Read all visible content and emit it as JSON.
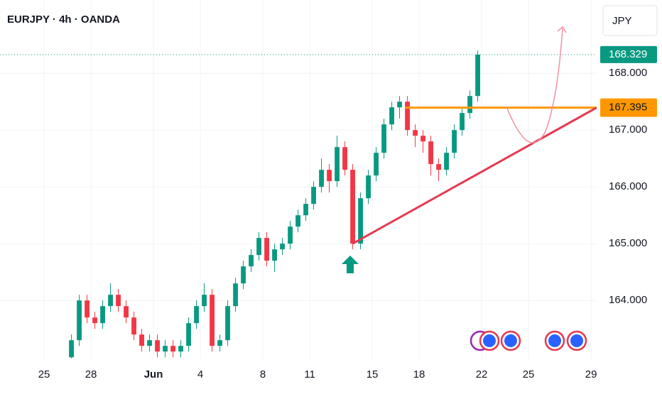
{
  "chart_data": {
    "type": "candlestick",
    "title": "EURJPY · 4h · OANDA",
    "currency": "JPY",
    "up_color": "#089981",
    "down_color": "#f23645",
    "xlim": [
      -2.82,
      35.36
    ],
    "xticks": [
      {
        "value": 0,
        "label": "25"
      },
      {
        "value": 3,
        "label": "28"
      },
      {
        "value": 7,
        "label": "Jun"
      },
      {
        "value": 10,
        "label": "4"
      },
      {
        "value": 14,
        "label": "8"
      },
      {
        "value": 17,
        "label": "11"
      },
      {
        "value": 21,
        "label": "15"
      },
      {
        "value": 24,
        "label": "18"
      },
      {
        "value": 28,
        "label": "22"
      },
      {
        "value": 31,
        "label": "25"
      },
      {
        "value": 35,
        "label": "29"
      }
    ],
    "ylim": [
      163.04,
      169.29
    ],
    "yticks": [
      {
        "value": 164,
        "label": "164.000"
      },
      {
        "value": 165,
        "label": "165.000"
      },
      {
        "value": 166,
        "label": "166.000"
      },
      {
        "value": 167,
        "label": "167.000"
      },
      {
        "value": 168,
        "label": "168.000"
      }
    ],
    "grid": true,
    "candles": [
      [
        1.75,
        163.0,
        163.4,
        162.9,
        163.3
      ],
      [
        2.25,
        163.3,
        164.1,
        163.2,
        164.0
      ],
      [
        2.75,
        164.0,
        164.1,
        163.6,
        163.7
      ],
      [
        3.25,
        163.7,
        163.8,
        163.5,
        163.6
      ],
      [
        3.75,
        163.6,
        164.0,
        163.5,
        163.9
      ],
      [
        4.25,
        163.9,
        164.3,
        163.8,
        164.1
      ],
      [
        4.75,
        164.1,
        164.2,
        163.8,
        163.9
      ],
      [
        5.25,
        163.9,
        164.0,
        163.6,
        163.7
      ],
      [
        5.75,
        163.7,
        163.8,
        163.3,
        163.4
      ],
      [
        6.25,
        163.4,
        163.5,
        163.1,
        163.2
      ],
      [
        6.75,
        163.2,
        163.4,
        163.1,
        163.3
      ],
      [
        7.25,
        163.3,
        163.4,
        163.0,
        163.1
      ],
      [
        7.75,
        163.1,
        163.3,
        163.0,
        163.2
      ],
      [
        8.25,
        163.2,
        163.3,
        163.0,
        163.1
      ],
      [
        8.75,
        163.1,
        163.3,
        163.0,
        163.2
      ],
      [
        9.25,
        163.2,
        163.7,
        163.1,
        163.6
      ],
      [
        9.75,
        163.6,
        164.0,
        163.5,
        163.9
      ],
      [
        10.25,
        163.9,
        164.3,
        163.8,
        164.1
      ],
      [
        10.75,
        164.1,
        164.2,
        163.1,
        163.2
      ],
      [
        11.25,
        163.2,
        163.4,
        163.1,
        163.3
      ],
      [
        11.75,
        163.3,
        164.0,
        163.2,
        163.9
      ],
      [
        12.25,
        163.9,
        164.4,
        163.8,
        164.3
      ],
      [
        12.75,
        164.3,
        164.7,
        164.2,
        164.6
      ],
      [
        13.25,
        164.6,
        164.9,
        164.5,
        164.8
      ],
      [
        13.75,
        164.8,
        165.2,
        164.7,
        165.1
      ],
      [
        14.25,
        165.1,
        165.2,
        164.6,
        164.7
      ],
      [
        14.75,
        164.7,
        165.0,
        164.5,
        164.9
      ],
      [
        15.25,
        164.9,
        165.1,
        164.8,
        165.0
      ],
      [
        15.75,
        165.0,
        165.4,
        164.9,
        165.3
      ],
      [
        16.25,
        165.3,
        165.6,
        165.2,
        165.5
      ],
      [
        16.75,
        165.5,
        165.8,
        165.4,
        165.7
      ],
      [
        17.25,
        165.7,
        166.1,
        165.6,
        166.0
      ],
      [
        17.75,
        166.0,
        166.5,
        165.9,
        166.3
      ],
      [
        18.25,
        166.3,
        166.4,
        165.9,
        166.1
      ],
      [
        18.75,
        166.1,
        166.9,
        166.0,
        166.7
      ],
      [
        19.25,
        166.7,
        166.8,
        166.2,
        166.3
      ],
      [
        19.75,
        166.3,
        166.4,
        164.9,
        165.0
      ],
      [
        20.25,
        165.0,
        165.9,
        164.9,
        165.8
      ],
      [
        20.75,
        165.8,
        166.3,
        165.7,
        166.2
      ],
      [
        21.25,
        166.2,
        166.7,
        166.1,
        166.6
      ],
      [
        21.75,
        166.6,
        167.2,
        166.5,
        167.1
      ],
      [
        22.25,
        167.1,
        167.5,
        167.0,
        167.4
      ],
      [
        22.75,
        167.4,
        167.6,
        167.2,
        167.5
      ],
      [
        23.25,
        167.5,
        167.6,
        166.9,
        167.0
      ],
      [
        23.75,
        167.0,
        167.1,
        166.7,
        166.9
      ],
      [
        24.25,
        166.9,
        167.0,
        166.6,
        166.8
      ],
      [
        24.75,
        166.8,
        166.9,
        166.2,
        166.4
      ],
      [
        25.25,
        166.4,
        166.5,
        166.1,
        166.3
      ],
      [
        25.75,
        166.3,
        166.7,
        166.2,
        166.6
      ],
      [
        26.25,
        166.6,
        167.1,
        166.5,
        167.0
      ],
      [
        26.75,
        167.0,
        167.4,
        166.9,
        167.3
      ],
      [
        27.25,
        167.3,
        167.7,
        167.2,
        167.6
      ],
      [
        27.75,
        167.6,
        168.4,
        167.5,
        168.329
      ]
    ],
    "last_price": 168.329,
    "horizontal_line": {
      "y": 167.395,
      "x": [
        23.1,
        35.36
      ],
      "color": "#ff9800"
    },
    "trendline": {
      "x": [
        19.75,
        35.36
      ],
      "y": [
        165.0,
        167.395
      ],
      "color": "#e53950"
    }
  }
}
